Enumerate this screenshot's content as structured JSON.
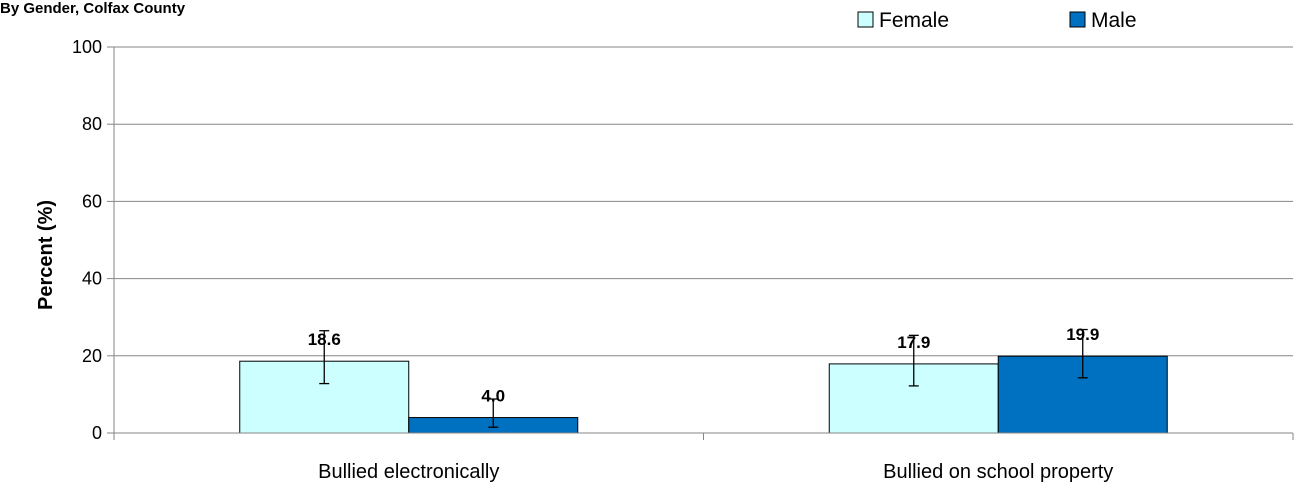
{
  "chart_data": {
    "type": "bar",
    "title": "By Gender, Colfax County",
    "ylabel": "Percent (%)",
    "xlabel": "",
    "ylim": [
      0,
      100
    ],
    "yticks": [
      0,
      20,
      40,
      60,
      80,
      100
    ],
    "grid": true,
    "legend_position": "top-right",
    "categories": [
      "Bullied electronically",
      "Bullied on school property"
    ],
    "series": [
      {
        "name": "Female",
        "color": "#ccffff",
        "values": [
          18.6,
          17.9
        ],
        "labels": [
          "18.6",
          "17.9"
        ],
        "error_low": [
          12.8,
          12.2
        ],
        "error_high": [
          26.5,
          25.3
        ]
      },
      {
        "name": "Male",
        "color": "#0070c0",
        "values": [
          4.0,
          19.9
        ],
        "labels": [
          "4.0",
          "19.9"
        ],
        "error_low": [
          1.5,
          14.3
        ],
        "error_high": [
          8.8,
          26.8
        ]
      }
    ]
  }
}
